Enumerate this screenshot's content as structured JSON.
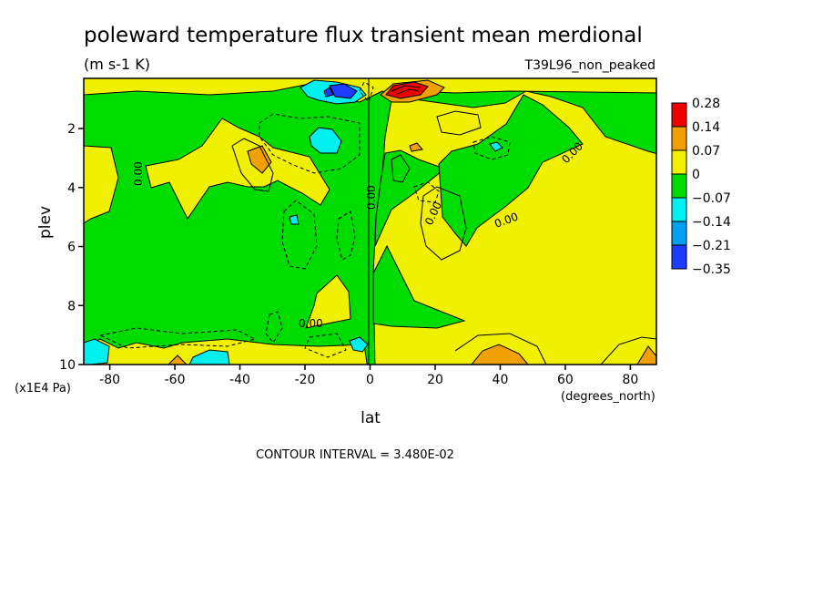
{
  "chart_data": {
    "type": "heatmap",
    "title": "poleward temperature flux transient mean merdional",
    "units": "(m s-1 K)",
    "dataset": "T39L96_non_peaked",
    "xlabel": "lat",
    "x_units": "(degrees_north)",
    "ylabel": "plev",
    "y_units": "(x1E4 Pa)",
    "xlim": [
      -88,
      88
    ],
    "ylim": [
      10,
      0.3
    ],
    "x_ticks": [
      "-80",
      "-60",
      "-40",
      "-20",
      "0",
      "20",
      "40",
      "60",
      "80"
    ],
    "y_ticks": [
      "2",
      "4",
      "6",
      "8",
      "10"
    ],
    "contour_interval_label": "CONTOUR INTERVAL = 3.480E-02",
    "contour_labels": [
      "0.00",
      "0.00",
      "0.00",
      "0.00",
      "0.00",
      "0.00"
    ],
    "colorbar": {
      "colors": [
        "#ef0000",
        "#f0a000",
        "#f0f000",
        "#00dc00",
        "#00f0f0",
        "#00a0f0",
        "#1e3cff"
      ],
      "labels": [
        "0.28",
        "0.14",
        "0.07",
        "0",
        "−0.07",
        "−0.14",
        "−0.21",
        "−0.35"
      ]
    },
    "regions": [
      {
        "level": "positive",
        "color": "#f0f000",
        "lat": [
          -88,
          -72
        ],
        "plev": [
          2.2,
          5.0
        ]
      },
      {
        "level": "positive",
        "color": "#f0f000",
        "lat": [
          -62,
          -22
        ],
        "plev": [
          1.2,
          5.0
        ]
      },
      {
        "level": "positive",
        "color": "#f0f000",
        "lat": [
          -16,
          -6
        ],
        "plev": [
          7.2,
          8.8
        ]
      },
      {
        "level": "positive",
        "color": "#f0f000",
        "lat": [
          4,
          88
        ],
        "plev": [
          0.5,
          10
        ]
      },
      {
        "level": "strong-positive",
        "color": "#f0a000",
        "lat": [
          -37,
          -33
        ],
        "plev": [
          2.5,
          3.2
        ]
      },
      {
        "level": "strong-positive",
        "color": "#f0a000",
        "lat": [
          36,
          46
        ],
        "plev": [
          9.2,
          10
        ]
      },
      {
        "level": "max-positive",
        "color": "#ef0000",
        "lat": [
          6,
          18
        ],
        "plev": [
          0.35,
          0.8
        ]
      },
      {
        "level": "negative",
        "color": "#00f0f0",
        "lat": [
          -20,
          -8
        ],
        "plev": [
          0.3,
          1.0
        ]
      },
      {
        "level": "negative",
        "color": "#00f0f0",
        "lat": [
          -18,
          -12
        ],
        "plev": [
          1.8,
          2.6
        ]
      },
      {
        "level": "negative",
        "color": "#00f0f0",
        "lat": [
          -88,
          -80
        ],
        "plev": [
          9.2,
          10
        ]
      },
      {
        "level": "negative",
        "color": "#00f0f0",
        "lat": [
          -50,
          -40
        ],
        "plev": [
          9.4,
          10
        ]
      },
      {
        "level": "strong-negative",
        "color": "#1e3cff",
        "lat": [
          -12,
          -8
        ],
        "plev": [
          0.3,
          0.7
        ]
      }
    ]
  }
}
